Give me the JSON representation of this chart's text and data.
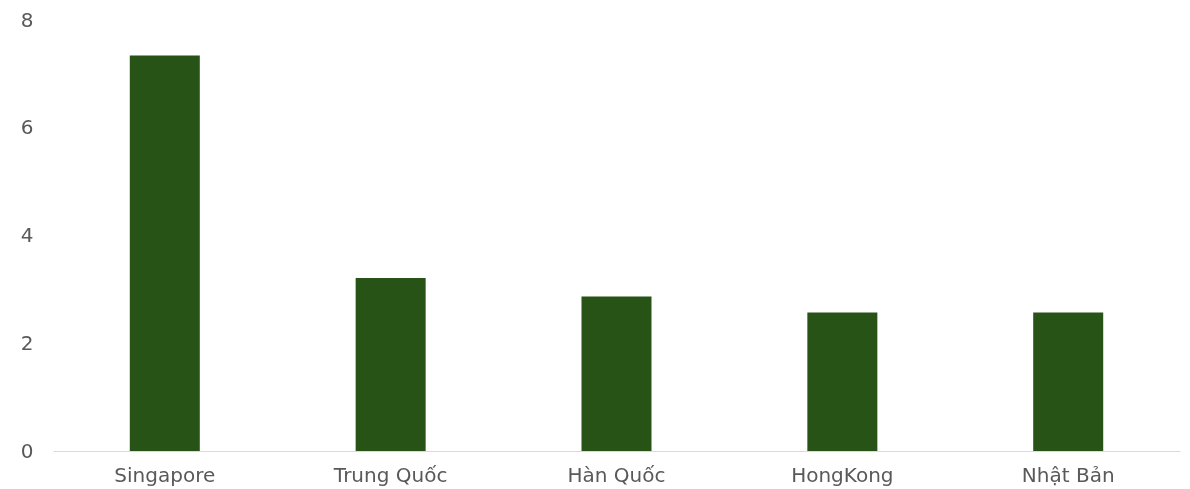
{
  "chart_data": {
    "type": "bar",
    "categories": [
      "Singapore",
      "Trung Quốc",
      "Hàn Quốc",
      "HongKong",
      "Nhật Bản"
    ],
    "values": [
      7.34,
      3.21,
      2.87,
      2.57,
      2.57
    ],
    "color": "#275317",
    "ylim": [
      0,
      8
    ],
    "yticks": [
      0,
      2,
      4,
      6,
      8
    ],
    "grid": false
  }
}
